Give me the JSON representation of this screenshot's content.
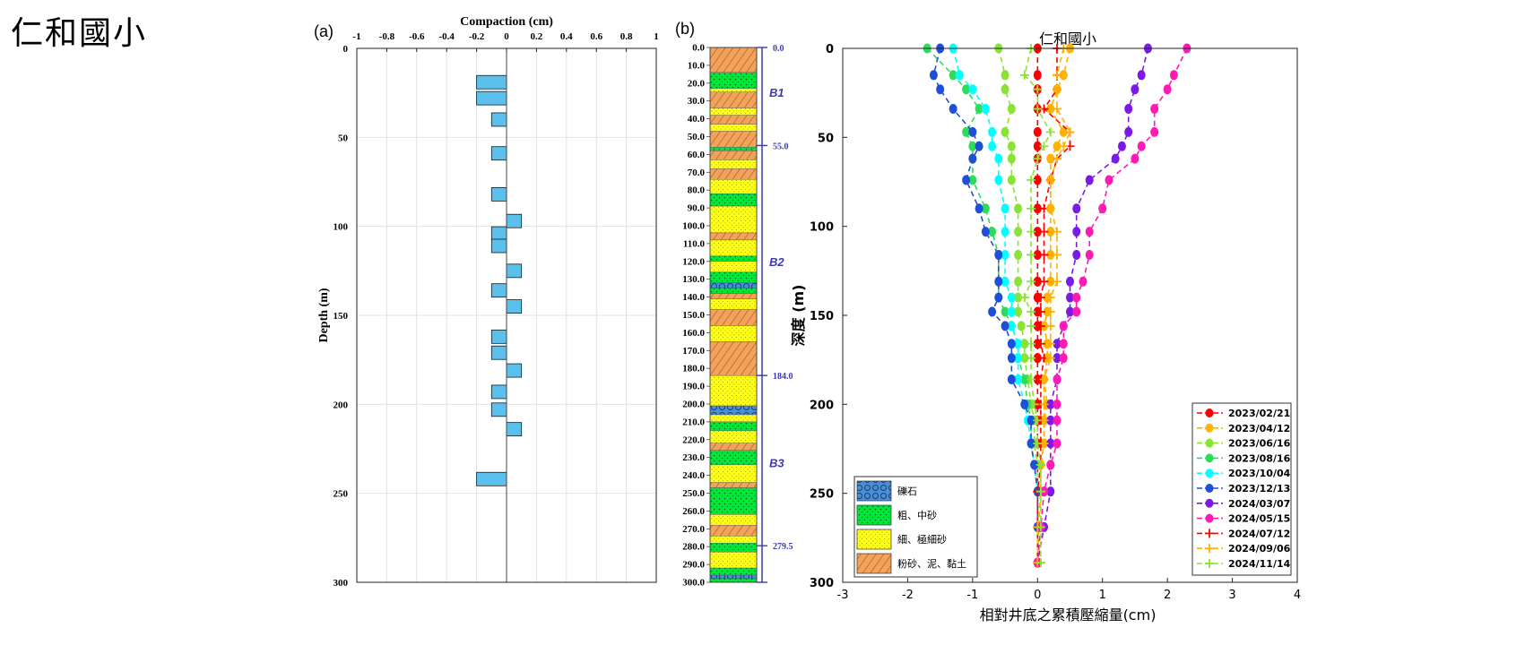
{
  "page_title": "仁和國小",
  "colors": {
    "bar_fill": "#5bc0eb",
    "gravel": "#4a8fd4",
    "coarse_sand": "#00e83a",
    "fine_sand": "#ffff1a",
    "silt_clay": "#f2a25a",
    "boundary": "#3b3bb0"
  },
  "chart_data": [
    {
      "id": "a",
      "panel_label": "(a)",
      "type": "bar",
      "orientation": "horizontal",
      "title": "Compaction (cm)",
      "xlabel": "Compaction (cm)",
      "ylabel": "Depth (m)",
      "xlim": [
        -1,
        1
      ],
      "ylim": [
        0,
        300
      ],
      "xticks": [
        "-1",
        "-0.8",
        "-0.6",
        "-0.4",
        "-0.2",
        "0",
        "0.2",
        "0.4",
        "0.6",
        "0.8",
        "1"
      ],
      "yticks": [
        "0",
        "50",
        "100",
        "150",
        "200",
        "250",
        "300"
      ],
      "grid": true,
      "bars": [
        {
          "depth": 19,
          "value": -0.2
        },
        {
          "depth": 28,
          "value": -0.2
        },
        {
          "depth": 40,
          "value": -0.1
        },
        {
          "depth": 59,
          "value": -0.1
        },
        {
          "depth": 82,
          "value": -0.1
        },
        {
          "depth": 97,
          "value": 0.1
        },
        {
          "depth": 104,
          "value": -0.1
        },
        {
          "depth": 111,
          "value": -0.1
        },
        {
          "depth": 125,
          "value": 0.1
        },
        {
          "depth": 136,
          "value": -0.1
        },
        {
          "depth": 145,
          "value": 0.1
        },
        {
          "depth": 162,
          "value": -0.1
        },
        {
          "depth": 171,
          "value": -0.1
        },
        {
          "depth": 181,
          "value": 0.1
        },
        {
          "depth": 193,
          "value": -0.1
        },
        {
          "depth": 203,
          "value": -0.1
        },
        {
          "depth": 214,
          "value": 0.1
        },
        {
          "depth": 242,
          "value": -0.2
        }
      ]
    },
    {
      "id": "b",
      "panel_label": "(b)",
      "type": "table",
      "description": "borehole lithology column",
      "depth_range": [
        0,
        300
      ],
      "depth_ticks": [
        "0.0",
        "10.0",
        "20.0",
        "30.0",
        "40.0",
        "50.0",
        "60.0",
        "70.0",
        "80.0",
        "90.0",
        "100.0",
        "110.0",
        "120.0",
        "130.0",
        "140.0",
        "150.0",
        "160.0",
        "170.0",
        "180.0",
        "190.0",
        "200.0",
        "210.0",
        "220.0",
        "230.0",
        "240.0",
        "250.0",
        "260.0",
        "270.0",
        "280.0",
        "290.0",
        "300.0"
      ],
      "boundaries": [
        {
          "depth": 0,
          "label": "0.0"
        },
        {
          "depth": 55,
          "label": "55.0"
        },
        {
          "depth": 184,
          "label": "184.0"
        },
        {
          "depth": 279.5,
          "label": "279.5"
        },
        {
          "depth": 300,
          "label": ""
        }
      ],
      "units": [
        {
          "label": "B1",
          "depth": 25
        },
        {
          "label": "B2",
          "depth": 120
        },
        {
          "label": "B3",
          "depth": 233
        }
      ],
      "layers": [
        {
          "top": 0,
          "bottom": 14,
          "type": "silt_clay"
        },
        {
          "top": 14,
          "bottom": 23,
          "type": "coarse_sand"
        },
        {
          "top": 23,
          "bottom": 25,
          "type": "fine_sand"
        },
        {
          "top": 25,
          "bottom": 34,
          "type": "silt_clay"
        },
        {
          "top": 34,
          "bottom": 38,
          "type": "fine_sand"
        },
        {
          "top": 38,
          "bottom": 43,
          "type": "silt_clay"
        },
        {
          "top": 43,
          "bottom": 47,
          "type": "fine_sand"
        },
        {
          "top": 47,
          "bottom": 56,
          "type": "silt_clay"
        },
        {
          "top": 56,
          "bottom": 58,
          "type": "coarse_sand"
        },
        {
          "top": 58,
          "bottom": 63,
          "type": "silt_clay"
        },
        {
          "top": 63,
          "bottom": 68,
          "type": "fine_sand"
        },
        {
          "top": 68,
          "bottom": 74,
          "type": "silt_clay"
        },
        {
          "top": 74,
          "bottom": 82,
          "type": "fine_sand"
        },
        {
          "top": 82,
          "bottom": 89,
          "type": "coarse_sand"
        },
        {
          "top": 89,
          "bottom": 104,
          "type": "fine_sand"
        },
        {
          "top": 104,
          "bottom": 108,
          "type": "silt_clay"
        },
        {
          "top": 108,
          "bottom": 117,
          "type": "fine_sand"
        },
        {
          "top": 117,
          "bottom": 120,
          "type": "coarse_sand"
        },
        {
          "top": 120,
          "bottom": 126,
          "type": "fine_sand"
        },
        {
          "top": 126,
          "bottom": 132,
          "type": "coarse_sand"
        },
        {
          "top": 132,
          "bottom": 135,
          "type": "gravel"
        },
        {
          "top": 135,
          "bottom": 138,
          "type": "coarse_sand"
        },
        {
          "top": 138,
          "bottom": 141,
          "type": "silt_clay"
        },
        {
          "top": 141,
          "bottom": 147,
          "type": "fine_sand"
        },
        {
          "top": 147,
          "bottom": 156,
          "type": "silt_clay"
        },
        {
          "top": 156,
          "bottom": 165,
          "type": "fine_sand"
        },
        {
          "top": 165,
          "bottom": 184,
          "type": "silt_clay"
        },
        {
          "top": 184,
          "bottom": 201,
          "type": "fine_sand"
        },
        {
          "top": 201,
          "bottom": 206,
          "type": "gravel"
        },
        {
          "top": 206,
          "bottom": 210,
          "type": "fine_sand"
        },
        {
          "top": 210,
          "bottom": 215,
          "type": "coarse_sand"
        },
        {
          "top": 215,
          "bottom": 222,
          "type": "fine_sand"
        },
        {
          "top": 222,
          "bottom": 226,
          "type": "silt_clay"
        },
        {
          "top": 226,
          "bottom": 234,
          "type": "coarse_sand"
        },
        {
          "top": 234,
          "bottom": 244,
          "type": "fine_sand"
        },
        {
          "top": 244,
          "bottom": 247,
          "type": "silt_clay"
        },
        {
          "top": 247,
          "bottom": 262,
          "type": "coarse_sand"
        },
        {
          "top": 262,
          "bottom": 268,
          "type": "fine_sand"
        },
        {
          "top": 268,
          "bottom": 274,
          "type": "silt_clay"
        },
        {
          "top": 274,
          "bottom": 278,
          "type": "fine_sand"
        },
        {
          "top": 278,
          "bottom": 283,
          "type": "coarse_sand"
        },
        {
          "top": 283,
          "bottom": 292,
          "type": "fine_sand"
        },
        {
          "top": 292,
          "bottom": 296,
          "type": "coarse_sand"
        },
        {
          "top": 296,
          "bottom": 298,
          "type": "gravel"
        },
        {
          "top": 298,
          "bottom": 300,
          "type": "coarse_sand"
        }
      ]
    },
    {
      "id": "c",
      "type": "line",
      "title": "仁和國小",
      "xlabel": "相對井底之累積壓縮量(cm)",
      "ylabel": "深度 (m)",
      "xlim": [
        -3,
        4
      ],
      "ylim": [
        0,
        300
      ],
      "xticks": [
        "-3",
        "-2",
        "-1",
        "0",
        "1",
        "2",
        "3",
        "4"
      ],
      "yticks": [
        "0",
        "50",
        "100",
        "150",
        "200",
        "250",
        "300"
      ],
      "depths": [
        0,
        15,
        23,
        34,
        47,
        55,
        62,
        74,
        90,
        103,
        116,
        131,
        140,
        148,
        156,
        166,
        174,
        186,
        200,
        209,
        222,
        234,
        249,
        269,
        289
      ],
      "series": [
        {
          "name": "2023/02/21",
          "color": "#ff0000",
          "marker": "dot",
          "values": [
            0,
            0,
            0,
            0,
            0,
            0,
            0,
            0,
            0,
            0,
            0,
            0,
            0,
            0,
            0,
            0,
            0,
            0,
            0,
            0,
            0,
            0,
            0,
            0,
            0
          ]
        },
        {
          "name": "2023/04/12",
          "color": "#ffb300",
          "marker": "dot",
          "values": [
            0.5,
            0.4,
            0.3,
            0.2,
            0.4,
            0.3,
            0.2,
            0.2,
            0.2,
            0.2,
            0.2,
            0.2,
            0.15,
            0.15,
            0.1,
            0.15,
            0.15,
            0.1,
            0.15,
            0.1,
            0.1,
            0.05,
            0.05,
            0.02,
            0
          ]
        },
        {
          "name": "2023/06/16",
          "color": "#8ae234",
          "marker": "dot",
          "values": [
            -0.6,
            -0.5,
            -0.5,
            -0.4,
            -0.5,
            -0.4,
            -0.4,
            -0.4,
            -0.3,
            -0.3,
            -0.3,
            -0.3,
            -0.3,
            -0.3,
            -0.25,
            -0.2,
            -0.2,
            -0.15,
            -0.1,
            -0.05,
            -0.05,
            0,
            0,
            0,
            0
          ]
        },
        {
          "name": "2023/08/16",
          "color": "#2edc5c",
          "marker": "dot",
          "values": [
            -1.7,
            -1.3,
            -1.1,
            -0.9,
            -1.1,
            -1.0,
            -1.0,
            -1.0,
            -0.8,
            -0.7,
            -0.6,
            -0.6,
            -0.6,
            -0.5,
            -0.4,
            -0.3,
            -0.3,
            -0.2,
            -0.15,
            -0.1,
            -0.1,
            -0.05,
            0,
            0,
            0
          ]
        },
        {
          "name": "2023/10/04",
          "color": "#00ffff",
          "marker": "dot",
          "values": [
            -1.3,
            -1.2,
            -1.0,
            -0.8,
            -0.7,
            -0.7,
            -0.6,
            -0.6,
            -0.5,
            -0.5,
            -0.5,
            -0.5,
            -0.4,
            -0.4,
            -0.4,
            -0.3,
            -0.3,
            -0.3,
            -0.2,
            -0.15,
            -0.1,
            -0.05,
            0,
            0,
            0
          ]
        },
        {
          "name": "2023/12/13",
          "color": "#1f4fd8",
          "marker": "dot",
          "values": [
            -1.5,
            -1.6,
            -1.5,
            -1.3,
            -1.0,
            -0.9,
            -1.0,
            -1.1,
            -0.9,
            -0.8,
            -0.6,
            -0.6,
            -0.6,
            -0.7,
            -0.5,
            -0.4,
            -0.4,
            -0.4,
            -0.2,
            -0.1,
            -0.1,
            -0.05,
            0,
            0,
            0
          ]
        },
        {
          "name": "2024/03/07",
          "color": "#7b19e6",
          "marker": "dot",
          "values": [
            1.7,
            1.6,
            1.5,
            1.4,
            1.4,
            1.3,
            1.2,
            0.8,
            0.6,
            0.6,
            0.6,
            0.5,
            0.5,
            0.5,
            0.4,
            0.3,
            0.3,
            0.3,
            0.2,
            0.2,
            0.2,
            0.2,
            0.2,
            0.1,
            0
          ]
        },
        {
          "name": "2024/05/15",
          "color": "#ff1ab4",
          "marker": "dot",
          "values": [
            2.3,
            2.1,
            2.0,
            1.8,
            1.8,
            1.6,
            1.5,
            1.1,
            1.0,
            0.8,
            0.8,
            0.7,
            0.6,
            0.6,
            0.4,
            0.4,
            0.4,
            0.3,
            0.3,
            0.3,
            0.3,
            0.2,
            0.1,
            0.05,
            0
          ]
        },
        {
          "name": "2024/07/12",
          "color": "#ff0000",
          "marker": "plus",
          "values": [
            0.3,
            0.3,
            0.3,
            0.1,
            0.5,
            0.5,
            0.3,
            0.2,
            0.1,
            0.1,
            0.1,
            0.1,
            0.05,
            0.05,
            0.05,
            0.05,
            0.1,
            0.05,
            0.05,
            0.05,
            0.05,
            0.05,
            0,
            0,
            0
          ]
        },
        {
          "name": "2024/09/06",
          "color": "#ffb300",
          "marker": "plus",
          "values": [
            0.4,
            0.3,
            0.3,
            0.3,
            0.5,
            0.4,
            0.3,
            0.2,
            0.2,
            0.3,
            0.3,
            0.3,
            0.2,
            0.2,
            0.2,
            0.2,
            0.2,
            0.1,
            0.1,
            0.1,
            0.1,
            0.05,
            0.05,
            0,
            0
          ]
        },
        {
          "name": "2024/11/14",
          "color": "#8ae234",
          "marker": "plus",
          "values": [
            -0.1,
            -0.2,
            0,
            0,
            0.2,
            0.1,
            0,
            -0.1,
            -0.1,
            -0.1,
            -0.1,
            -0.1,
            -0.2,
            -0.1,
            -0.1,
            -0.1,
            -0.1,
            -0.1,
            -0.05,
            0,
            0,
            0.05,
            0.05,
            0.05,
            0.05
          ]
        }
      ],
      "lithology_legend": [
        {
          "type": "gravel",
          "label": "礫石"
        },
        {
          "type": "coarse_sand",
          "label": "粗、中砂"
        },
        {
          "type": "fine_sand",
          "label": "細、極細砂"
        },
        {
          "type": "silt_clay",
          "label": "粉砂、泥、黏土"
        }
      ],
      "legend_position": "bottom-right"
    }
  ]
}
